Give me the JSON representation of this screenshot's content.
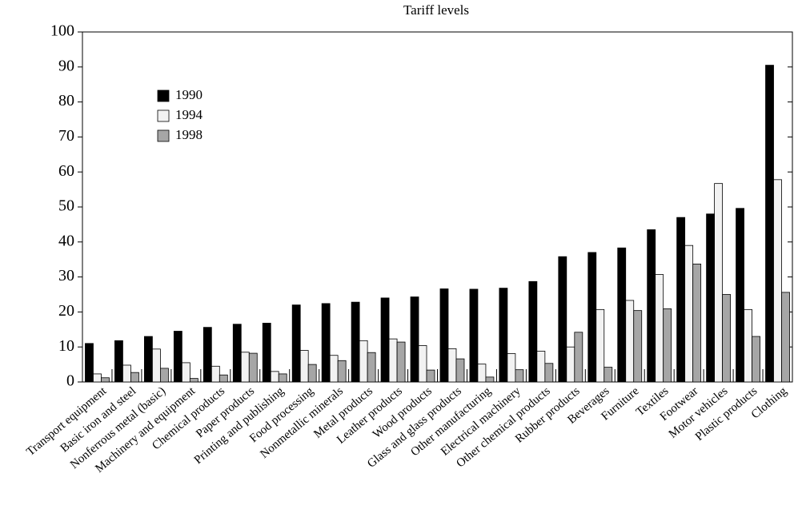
{
  "chart_data": {
    "type": "bar",
    "title": "Tariff levels",
    "categories": [
      "Transport equipment",
      "Basic iron and steel",
      "Nonferrous metal (basic)",
      "Machinery and equipment",
      "Chemical products",
      "Paper products",
      "Printing and publishing",
      "Food processing",
      "Nonmetallic minerals",
      "Metal products",
      "Leather products",
      "Wood products",
      "Glass and glass products",
      "Other manufacturing",
      "Electrical machinery",
      "Other chemical products",
      "Rubber products",
      "Beverages",
      "Furniture",
      "Textiles",
      "Footwear",
      "Motor vehicles",
      "Plastic products",
      "Clothing"
    ],
    "series": [
      {
        "name": "1990",
        "color": "#000000",
        "values": [
          11,
          11.8,
          13,
          14.5,
          15.6,
          16.5,
          16.8,
          22,
          22.4,
          22.8,
          24,
          24.3,
          26.6,
          26.5,
          26.8,
          28.7,
          35.8,
          37,
          38.3,
          43.5,
          47,
          48,
          49.6,
          90.5
        ]
      },
      {
        "name": "1994",
        "color": "#f2f2f2",
        "values": [
          2.3,
          4.8,
          9.4,
          5.5,
          4.5,
          8.5,
          3,
          9,
          7.6,
          11.8,
          12.3,
          10.4,
          9.5,
          5.1,
          8.1,
          8.8,
          10,
          20.7,
          23.3,
          30.7,
          39,
          56.7,
          20.7,
          57.8
        ]
      },
      {
        "name": "1998",
        "color": "#a6a6a6",
        "values": [
          1.2,
          2.7,
          3.9,
          1,
          2,
          8.2,
          2.3,
          5,
          6.1,
          8.4,
          11.4,
          3.4,
          6.6,
          1.4,
          3.5,
          5.3,
          14.2,
          4.2,
          20.4,
          20.9,
          33.7,
          25,
          13,
          25.6
        ]
      }
    ],
    "ylim": [
      0,
      100
    ],
    "yticks": [
      0,
      10,
      20,
      30,
      40,
      50,
      60,
      70,
      80,
      90,
      100
    ],
    "legend": "upper left"
  }
}
